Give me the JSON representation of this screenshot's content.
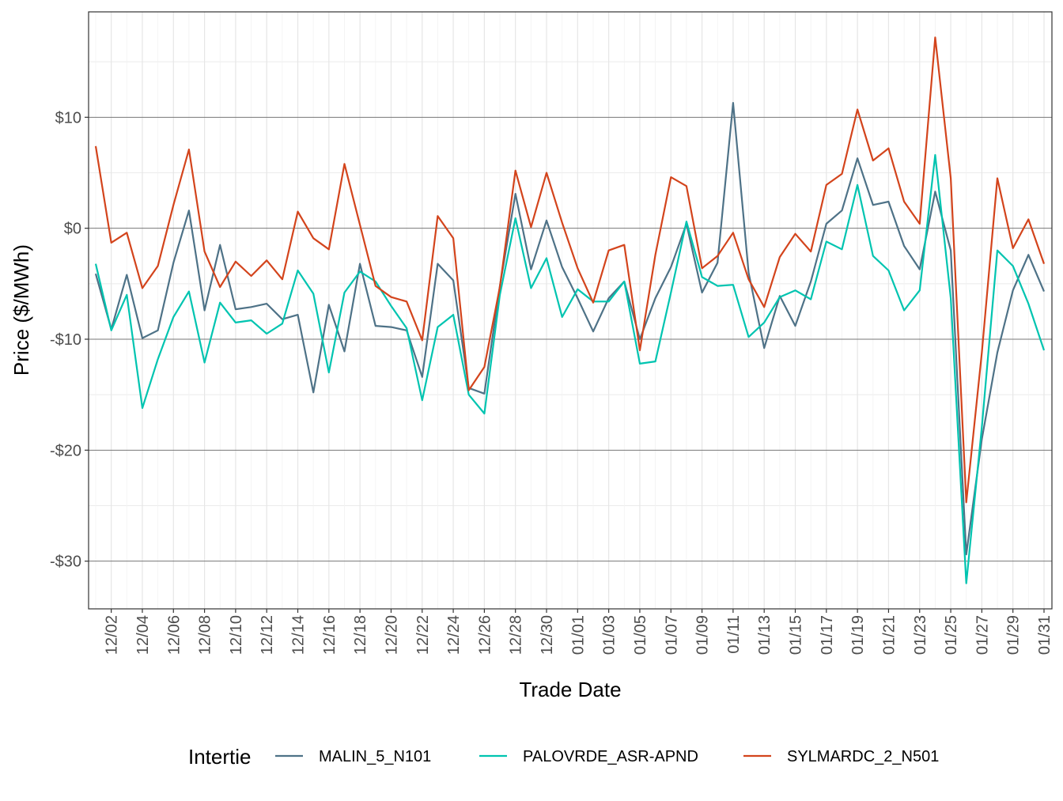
{
  "chart_data": {
    "type": "line",
    "xlabel": "Trade Date",
    "ylabel": "Price ($/MWh)",
    "ylim": [
      -34.3,
      19.5
    ],
    "yticks": [
      -30,
      -20,
      -10,
      0,
      10
    ],
    "ytick_labels": [
      "-$30",
      "-$20",
      "-$10",
      "$0",
      "$10"
    ],
    "grid": true,
    "legend": {
      "title": "Intertie",
      "position": "bottom"
    },
    "x": [
      "12/01",
      "12/02",
      "12/03",
      "12/04",
      "12/05",
      "12/06",
      "12/07",
      "12/08",
      "12/09",
      "12/10",
      "12/11",
      "12/12",
      "12/13",
      "12/14",
      "12/15",
      "12/16",
      "12/17",
      "12/18",
      "12/19",
      "12/20",
      "12/21",
      "12/22",
      "12/23",
      "12/24",
      "12/25",
      "12/26",
      "12/27",
      "12/28",
      "12/29",
      "12/30",
      "12/31",
      "01/01",
      "01/02",
      "01/03",
      "01/04",
      "01/05",
      "01/06",
      "01/07",
      "01/08",
      "01/09",
      "01/10",
      "01/11",
      "01/12",
      "01/13",
      "01/14",
      "01/15",
      "01/16",
      "01/17",
      "01/18",
      "01/19",
      "01/20",
      "01/21",
      "01/22",
      "01/23",
      "01/24",
      "01/25",
      "01/26",
      "01/27",
      "01/28",
      "01/29",
      "01/30",
      "01/31"
    ],
    "xtick_labels": [
      "12/02",
      "12/04",
      "12/06",
      "12/08",
      "12/10",
      "12/12",
      "12/14",
      "12/16",
      "12/18",
      "12/20",
      "12/22",
      "12/24",
      "12/26",
      "12/28",
      "12/30",
      "01/01",
      "01/03",
      "01/05",
      "01/07",
      "01/09",
      "01/11",
      "01/13",
      "01/15",
      "01/17",
      "01/19",
      "01/21",
      "01/23",
      "01/25",
      "01/27",
      "01/29",
      "01/31"
    ],
    "series": [
      {
        "name": "MALIN_5_N101",
        "color": "#4e7287",
        "values": [
          -4.1,
          -9.1,
          -4.2,
          -9.9,
          -9.2,
          -3.1,
          1.6,
          -7.4,
          -1.5,
          -7.3,
          -7.1,
          -6.8,
          -8.2,
          -7.8,
          -14.8,
          -6.9,
          -11.1,
          -3.2,
          -8.8,
          -8.9,
          -9.2,
          -13.4,
          -3.2,
          -4.7,
          -14.4,
          -14.9,
          -5.2,
          3.1,
          -3.7,
          0.7,
          -3.5,
          -6.3,
          -9.3,
          -6.3,
          -4.8,
          -10.0,
          -6.3,
          -3.5,
          0.4,
          -5.8,
          -3.1,
          11.3,
          -4.0,
          -10.8,
          -6.1,
          -8.8,
          -4.8,
          0.4,
          1.6,
          6.3,
          2.1,
          2.4,
          -1.6,
          -3.7,
          3.3,
          -2.0,
          -29.4,
          -19.0,
          -11.2,
          -5.6,
          -2.4,
          -5.7
        ]
      },
      {
        "name": "PALOVRDE_ASR-APND",
        "color": "#00c4b0",
        "values": [
          -3.2,
          -9.2,
          -6.0,
          -16.2,
          -11.8,
          -8.0,
          -5.7,
          -12.1,
          -6.7,
          -8.5,
          -8.3,
          -9.5,
          -8.6,
          -3.8,
          -5.9,
          -13.0,
          -5.8,
          -3.9,
          -4.8,
          -7.0,
          -9.0,
          -15.5,
          -8.9,
          -7.8,
          -15.0,
          -16.7,
          -6.0,
          0.9,
          -5.4,
          -2.7,
          -8.0,
          -5.5,
          -6.6,
          -6.6,
          -4.8,
          -12.2,
          -12.0,
          -5.8,
          0.6,
          -4.4,
          -5.2,
          -5.1,
          -9.8,
          -8.5,
          -6.2,
          -5.6,
          -6.4,
          -1.2,
          -1.9,
          3.9,
          -2.5,
          -3.8,
          -7.4,
          -5.6,
          6.6,
          -6.3,
          -32.0,
          -17.9,
          -2.0,
          -3.4,
          -6.8,
          -11.0
        ]
      },
      {
        "name": "SYLMARDC_2_N501",
        "color": "#d3441c",
        "values": [
          7.4,
          -1.3,
          -0.4,
          -5.4,
          -3.4,
          2.1,
          7.1,
          -2.1,
          -5.3,
          -3.0,
          -4.3,
          -2.9,
          -4.6,
          1.5,
          -0.9,
          -1.9,
          5.8,
          0.3,
          -5.2,
          -6.2,
          -6.6,
          -10.1,
          1.1,
          -0.9,
          -14.6,
          -12.5,
          -5.3,
          5.2,
          0.1,
          5.0,
          0.5,
          -3.6,
          -6.7,
          -2.0,
          -1.5,
          -11.0,
          -2.4,
          4.6,
          3.8,
          -3.6,
          -2.5,
          -0.4,
          -4.6,
          -7.1,
          -2.6,
          -0.5,
          -2.1,
          3.9,
          4.9,
          10.7,
          6.1,
          7.2,
          2.4,
          0.4,
          17.2,
          4.5,
          -24.7,
          -11.2,
          4.5,
          -1.8,
          0.8,
          -3.2
        ]
      }
    ]
  }
}
